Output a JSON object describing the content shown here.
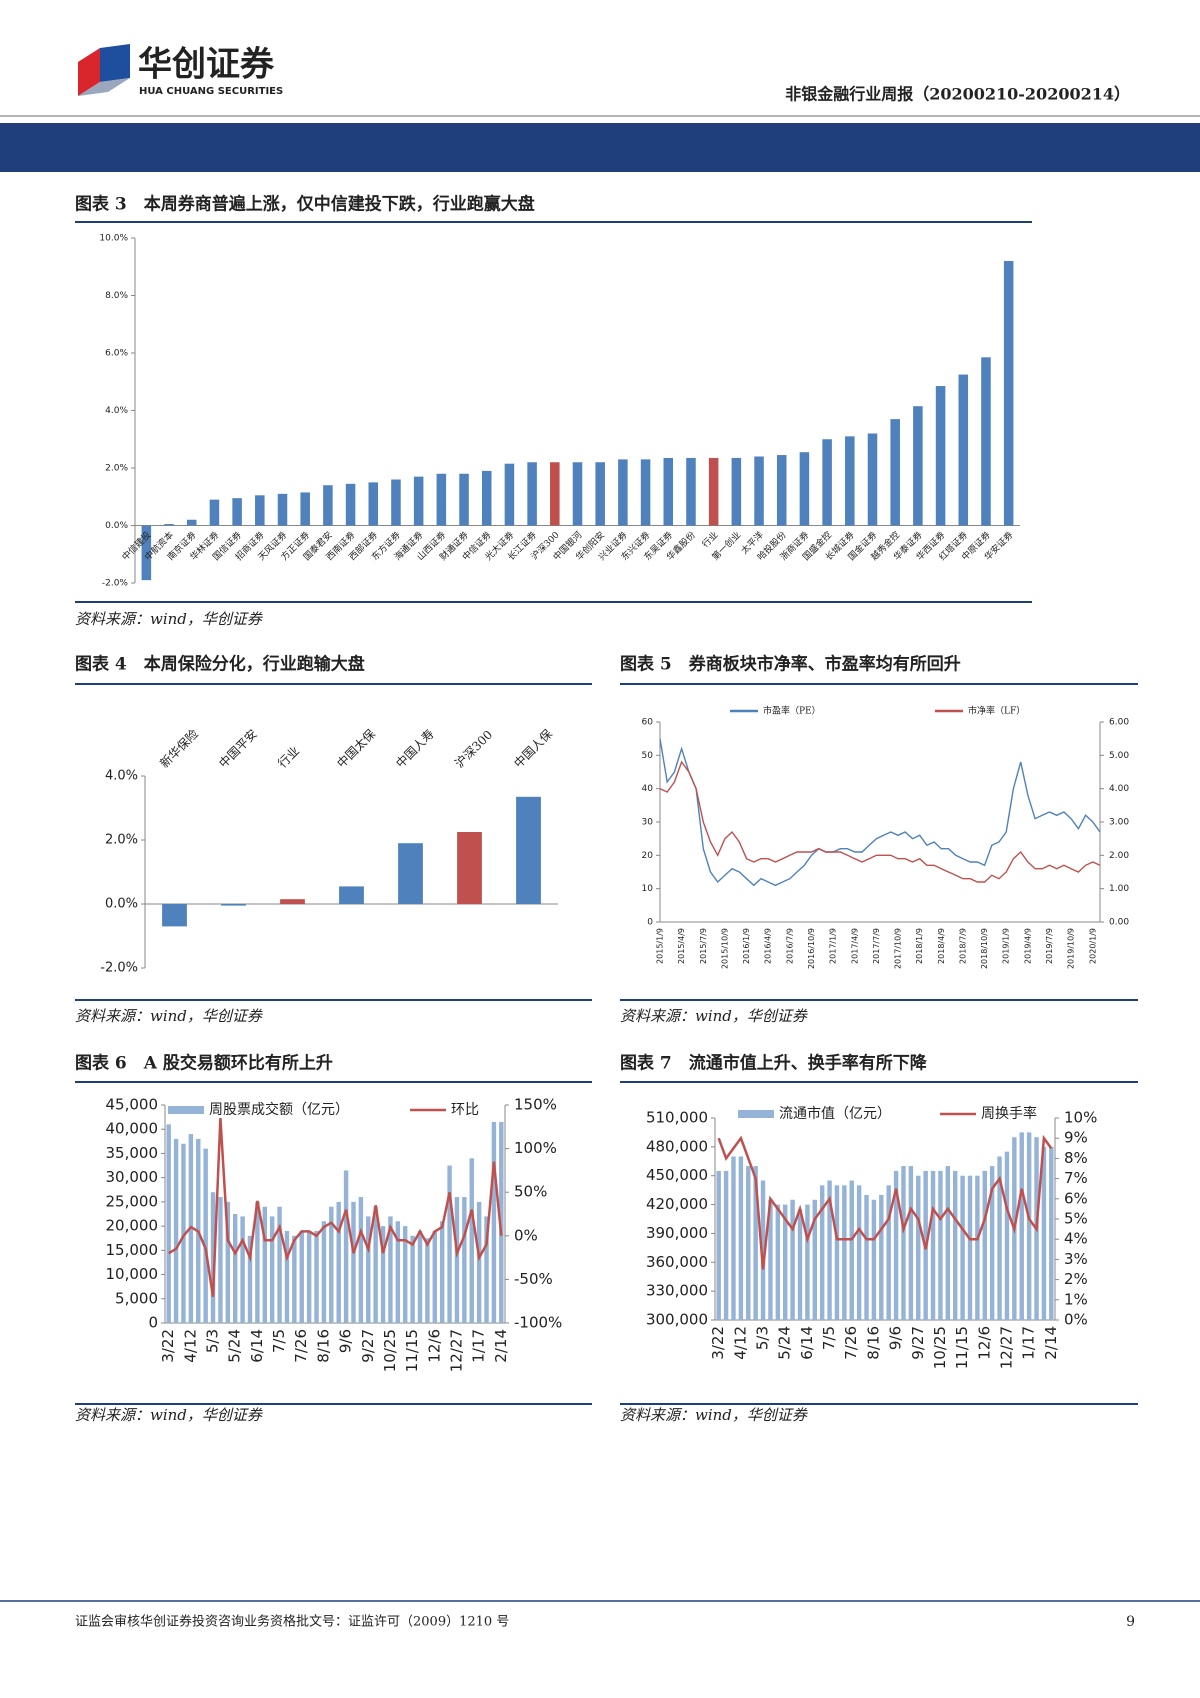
{
  "header": {
    "logo_cn": "华创证券",
    "logo_en": "HUA CHUANG SECURITIES",
    "report_title": "非银金融行业周报（20200210-20200214）"
  },
  "chart_data": [
    {
      "type": "bar",
      "title": "图表 3　本周券商普遍上涨，仅中信建投下跌，行业跑赢大盘",
      "categories": [
        "中信建投",
        "中航资本",
        "南京证券",
        "华林证券",
        "国信证券",
        "招商证券",
        "天风证券",
        "方正证券",
        "国泰君安",
        "西南证券",
        "西部证券",
        "东方证券",
        "海通证券",
        "山西证券",
        "财通证券",
        "中信证券",
        "光大证券",
        "长江证券",
        "沪深300",
        "中国银河",
        "华创阳安",
        "兴业证券",
        "东兴证券",
        "东吴证券",
        "华鑫股份",
        "行业",
        "第一创业",
        "太平洋",
        "哈投股份",
        "浙商证券",
        "国盛金控",
        "长城证券",
        "国金证券",
        "越秀金控",
        "华泰证券",
        "华西证券",
        "红塔证券",
        "中原证券",
        "华安证券"
      ],
      "values": [
        -1.9,
        0.05,
        0.2,
        0.9,
        0.95,
        1.05,
        1.1,
        1.15,
        1.4,
        1.45,
        1.5,
        1.6,
        1.7,
        1.8,
        1.8,
        1.9,
        2.15,
        2.2,
        2.2,
        2.2,
        2.2,
        2.3,
        2.3,
        2.35,
        2.35,
        2.35,
        2.35,
        2.4,
        2.45,
        2.55,
        3.0,
        3.1,
        3.2,
        3.7,
        4.15,
        4.85,
        5.25,
        5.85,
        9.2
      ],
      "colors": [
        "#4f81bd",
        "#4f81bd",
        "#4f81bd",
        "#4f81bd",
        "#4f81bd",
        "#4f81bd",
        "#4f81bd",
        "#4f81bd",
        "#4f81bd",
        "#4f81bd",
        "#4f81bd",
        "#4f81bd",
        "#4f81bd",
        "#4f81bd",
        "#4f81bd",
        "#4f81bd",
        "#4f81bd",
        "#4f81bd",
        "#c0504d",
        "#4f81bd",
        "#4f81bd",
        "#4f81bd",
        "#4f81bd",
        "#4f81bd",
        "#4f81bd",
        "#c0504d",
        "#4f81bd",
        "#4f81bd",
        "#4f81bd",
        "#4f81bd",
        "#4f81bd",
        "#4f81bd",
        "#4f81bd",
        "#4f81bd",
        "#4f81bd",
        "#4f81bd",
        "#4f81bd",
        "#4f81bd",
        "#4f81bd"
      ],
      "ylim": [
        -2,
        10
      ],
      "yticks": [
        {
          "value": -2,
          "label": "-2.0%"
        },
        {
          "value": 0,
          "label": "0.0%"
        },
        {
          "value": 2,
          "label": "2.0%"
        },
        {
          "value": 4,
          "label": "4.0%"
        },
        {
          "value": 6,
          "label": "6.0%"
        },
        {
          "value": 8,
          "label": "8.0%"
        },
        {
          "value": 10,
          "label": "10.0%"
        }
      ],
      "source": "资料来源：wind，华创证券"
    },
    {
      "type": "bar",
      "title": "图表 4　本周保险分化，行业跑输大盘",
      "categories": [
        "新华保险",
        "中国平安",
        "行业",
        "中国太保",
        "中国人寿",
        "沪深300",
        "中国人保"
      ],
      "values": [
        -0.7,
        -0.05,
        0.15,
        0.55,
        1.9,
        2.25,
        3.35
      ],
      "colors": [
        "#4f81bd",
        "#4f81bd",
        "#c0504d",
        "#4f81bd",
        "#4f81bd",
        "#c0504d",
        "#4f81bd"
      ],
      "ylim": [
        -2,
        4
      ],
      "yticks": [
        {
          "value": -2,
          "label": "-2.0%"
        },
        {
          "value": 0,
          "label": "0.0%"
        },
        {
          "value": 2,
          "label": "2.0%"
        },
        {
          "value": 4,
          "label": "4.0%"
        }
      ],
      "source": "资料来源：wind，华创证券"
    },
    {
      "type": "line",
      "title": "图表 5　券商板块市净率、市盈率均有所回升",
      "categories": [
        "2015/1/9",
        null,
        null,
        "2015/4/9",
        null,
        null,
        "2015/7/9",
        null,
        null,
        "2015/10/9",
        null,
        null,
        "2016/1/9",
        null,
        null,
        "2016/4/9",
        null,
        null,
        "2016/7/9",
        null,
        null,
        "2016/10/9",
        null,
        null,
        "2017/1/9",
        null,
        null,
        "2017/4/9",
        null,
        null,
        "2017/7/9",
        null,
        null,
        "2017/10/9",
        null,
        null,
        "2018/1/9",
        null,
        null,
        "2018/4/9",
        null,
        null,
        "2018/7/9",
        null,
        null,
        "2018/10/9",
        null,
        null,
        "2019/1/9",
        null,
        null,
        "2019/4/9",
        null,
        null,
        "2019/7/9",
        null,
        null,
        "2019/10/9",
        null,
        null,
        "2020/1/9",
        null
      ],
      "series": [
        {
          "name": "市盈率（PE）",
          "color": "#4f81bd",
          "values": [
            55,
            42,
            45,
            52,
            45,
            40,
            22,
            15,
            12,
            14,
            16,
            15,
            13,
            11,
            13,
            12,
            11,
            12,
            13,
            15,
            17,
            20,
            22,
            21,
            21,
            22,
            22,
            21,
            21,
            23,
            25,
            26,
            27,
            26,
            27,
            25,
            26,
            23,
            24,
            22,
            22,
            20,
            19,
            18,
            18,
            17,
            23,
            24,
            27,
            40,
            48,
            38,
            31,
            32,
            33,
            32,
            33,
            31,
            28,
            32,
            30,
            27
          ]
        },
        {
          "name": "市净率（LF）",
          "color": "#c0504d",
          "axis": "y2",
          "values": [
            4.0,
            3.9,
            4.2,
            4.8,
            4.5,
            4.0,
            3.0,
            2.4,
            2.0,
            2.5,
            2.7,
            2.4,
            1.9,
            1.8,
            1.9,
            1.9,
            1.8,
            1.9,
            2.0,
            2.1,
            2.1,
            2.1,
            2.2,
            2.1,
            2.1,
            2.1,
            2.0,
            1.9,
            1.8,
            1.9,
            2.0,
            2.0,
            2.0,
            1.9,
            1.9,
            1.8,
            1.9,
            1.7,
            1.7,
            1.6,
            1.5,
            1.4,
            1.3,
            1.3,
            1.2,
            1.2,
            1.4,
            1.3,
            1.5,
            1.9,
            2.1,
            1.8,
            1.6,
            1.6,
            1.7,
            1.6,
            1.7,
            1.6,
            1.5,
            1.7,
            1.8,
            1.7
          ]
        }
      ],
      "ylim": [
        0,
        60
      ],
      "yticks": [
        0,
        10,
        20,
        30,
        40,
        50,
        60
      ],
      "y2lim": [
        0,
        6
      ],
      "y2ticks": [
        {
          "value": 0,
          "label": "0.00"
        },
        {
          "value": 1,
          "label": "1.00"
        },
        {
          "value": 2,
          "label": "2.00"
        },
        {
          "value": 3,
          "label": "3.00"
        },
        {
          "value": 4,
          "label": "4.00"
        },
        {
          "value": 5,
          "label": "5.00"
        },
        {
          "value": 6,
          "label": "6.00"
        }
      ],
      "source": "资料来源：wind，华创证券"
    },
    {
      "type": "combo",
      "title": "图表 6　A 股交易额环比有所上升",
      "categories": [
        "3/22",
        null,
        null,
        "4/12",
        null,
        null,
        "5/3",
        null,
        null,
        "5/24",
        null,
        null,
        "6/14",
        null,
        null,
        "7/5",
        null,
        null,
        "7/26",
        null,
        null,
        "8/16",
        null,
        null,
        "9/6",
        null,
        null,
        "9/27",
        null,
        null,
        "10/25",
        null,
        null,
        "11/15",
        null,
        null,
        "12/6",
        null,
        null,
        "12/27",
        null,
        null,
        "1/17",
        null,
        null,
        "2/14"
      ],
      "series": [
        {
          "name": "周股票成交额（亿元）",
          "color": "#95b3d7",
          "type": "bar",
          "values": [
            41000,
            38000,
            37000,
            39000,
            38000,
            36000,
            27000,
            26000,
            25000,
            22500,
            22000,
            18000,
            25000,
            24000,
            22000,
            24000,
            19000,
            18000,
            19000,
            19000,
            19000,
            21000,
            24000,
            25000,
            31500,
            25000,
            26000,
            22000,
            24000,
            20000,
            22000,
            21000,
            20000,
            18000,
            19000,
            17500,
            19000,
            21000,
            32500,
            26000,
            26000,
            34000,
            25000,
            22000,
            41500,
            41500
          ]
        },
        {
          "name": "环比",
          "color": "#c0504d",
          "type": "line",
          "axis": "y2",
          "values": [
            -20,
            -15,
            0,
            10,
            5,
            -15,
            -70,
            135,
            -5,
            -20,
            -5,
            -25,
            40,
            -5,
            -5,
            10,
            -25,
            -5,
            5,
            5,
            0,
            10,
            15,
            5,
            30,
            -20,
            5,
            -15,
            35,
            -20,
            10,
            -5,
            -5,
            -10,
            5,
            -10,
            5,
            10,
            50,
            -20,
            0,
            30,
            -25,
            -10,
            85,
            0
          ]
        }
      ],
      "ylim": [
        0,
        45000
      ],
      "yticks": [
        0,
        {
          "value": 5000,
          "label": "5,000"
        },
        {
          "value": 10000,
          "label": "10,000"
        },
        {
          "value": 15000,
          "label": "15,000"
        },
        {
          "value": 20000,
          "label": "20,000"
        },
        {
          "value": 25000,
          "label": "25,000"
        },
        {
          "value": 30000,
          "label": "30,000"
        },
        {
          "value": 35000,
          "label": "35,000"
        },
        {
          "value": 40000,
          "label": "40,000"
        },
        {
          "value": 45000,
          "label": "45,000"
        }
      ],
      "y2lim": [
        -100,
        150
      ],
      "y2ticks": [
        {
          "value": -100,
          "label": "-100%"
        },
        {
          "value": -50,
          "label": "-50%"
        },
        {
          "value": 0,
          "label": "0%"
        },
        {
          "value": 50,
          "label": "50%"
        },
        {
          "value": 100,
          "label": "100%"
        },
        {
          "value": 150,
          "label": "150%"
        }
      ],
      "source": "资料来源：wind，华创证券"
    },
    {
      "type": "combo",
      "title": "图表 7　流通市值上升、换手率有所下降",
      "categories": [
        "3/22",
        null,
        null,
        "4/12",
        null,
        null,
        "5/3",
        null,
        null,
        "5/24",
        null,
        null,
        "6/14",
        null,
        null,
        "7/5",
        null,
        null,
        "7/26",
        null,
        null,
        "8/16",
        null,
        null,
        "9/6",
        null,
        null,
        "9/27",
        null,
        null,
        "10/25",
        null,
        null,
        "11/15",
        null,
        null,
        "12/6",
        null,
        null,
        "12/27",
        null,
        null,
        "1/17",
        null,
        null,
        "2/14"
      ],
      "series": [
        {
          "name": "流通市值（亿元）",
          "color": "#95b3d7",
          "type": "bar",
          "values": [
            455000,
            455000,
            470000,
            470000,
            460000,
            460000,
            445000,
            425000,
            420000,
            420000,
            425000,
            415000,
            420000,
            425000,
            440000,
            445000,
            440000,
            440000,
            445000,
            440000,
            430000,
            425000,
            430000,
            440000,
            455000,
            460000,
            460000,
            450000,
            455000,
            455000,
            455000,
            460000,
            455000,
            450000,
            450000,
            450000,
            455000,
            460000,
            470000,
            475000,
            490000,
            495000,
            495000,
            490000,
            480000,
            480000
          ]
        },
        {
          "name": "周换手率",
          "color": "#c0504d",
          "type": "line",
          "axis": "y2",
          "values": [
            9,
            8,
            8.5,
            9,
            8,
            7,
            2.5,
            6,
            5.5,
            5,
            4.5,
            5.5,
            4,
            5,
            5.5,
            6,
            4,
            4,
            4,
            4.5,
            4,
            4,
            4.5,
            5,
            6.5,
            4.5,
            5.5,
            5,
            3.5,
            5.5,
            5,
            5.5,
            5,
            4.5,
            4,
            4,
            5,
            6.5,
            7,
            5.5,
            4.5,
            6.5,
            5,
            4.5,
            9,
            8.5
          ]
        }
      ],
      "ylim": [
        300000,
        510000
      ],
      "yticks": [
        {
          "value": 300000,
          "label": "300,000"
        },
        {
          "value": 330000,
          "label": "330,000"
        },
        {
          "value": 360000,
          "label": "360,000"
        },
        {
          "value": 390000,
          "label": "390,000"
        },
        {
          "value": 420000,
          "label": "420,000"
        },
        {
          "value": 450000,
          "label": "450,000"
        },
        {
          "value": 480000,
          "label": "480,000"
        },
        {
          "value": 510000,
          "label": "510,000"
        }
      ],
      "y2lim": [
        0,
        10
      ],
      "y2ticks": [
        {
          "value": 0,
          "label": "0%"
        },
        {
          "value": 1,
          "label": "1%"
        },
        {
          "value": 2,
          "label": "2%"
        },
        {
          "value": 3,
          "label": "3%"
        },
        {
          "value": 4,
          "label": "4%"
        },
        {
          "value": 5,
          "label": "5%"
        },
        {
          "value": 6,
          "label": "6%"
        },
        {
          "value": 7,
          "label": "7%"
        },
        {
          "value": 8,
          "label": "8%"
        },
        {
          "value": 9,
          "label": "9%"
        },
        {
          "value": 10,
          "label": "10%"
        }
      ],
      "source": "资料来源：wind，华创证券"
    }
  ],
  "footer": {
    "note": "证监会审核华创证券投资咨询业务资格批文号：证监许可（2009）1210 号",
    "page": "9"
  }
}
